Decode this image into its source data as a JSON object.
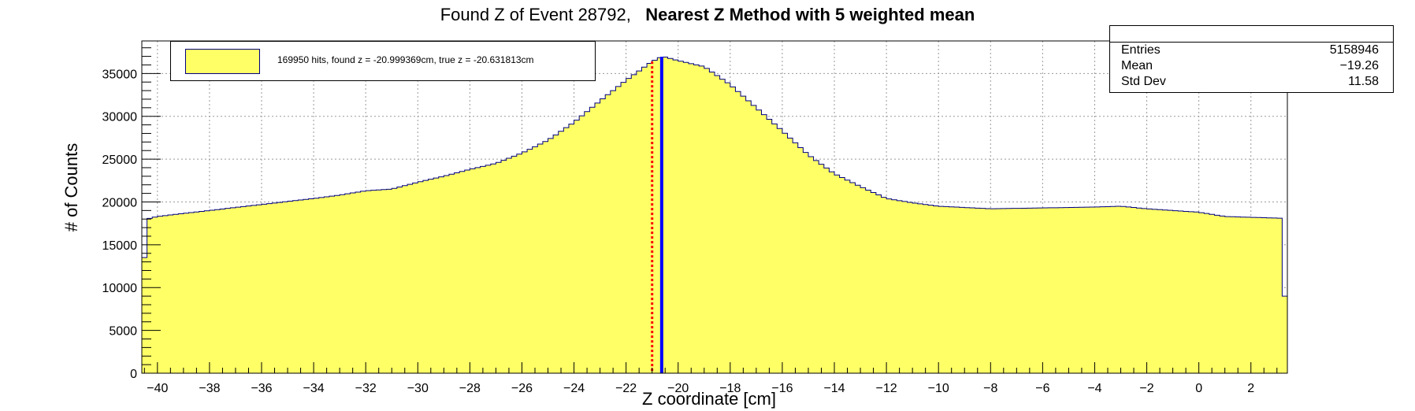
{
  "title": {
    "normal": "Found Z of Event 28792,",
    "bold": "Nearest Z Method with 5 weighted mean"
  },
  "legend": {
    "entry": "169950 hits, found z = -20.999369cm, true z = -20.631813cm"
  },
  "stats": {
    "rows": [
      {
        "label": "Entries",
        "value": "5158946"
      },
      {
        "label": "Mean",
        "value": "−19.26"
      },
      {
        "label": "Std Dev",
        "value": "11.58"
      }
    ]
  },
  "colors": {
    "fill": "#ffff66",
    "outline": "#000080",
    "true_z_line": "#0000ff",
    "found_z_line": "#ff0000",
    "grid": "#999999"
  },
  "chart_data": {
    "type": "bar",
    "histogram": true,
    "xlabel": "Z coordinate [cm]",
    "ylabel": "# of Counts",
    "xlim": [
      -40.6,
      3.4
    ],
    "ylim": [
      0,
      38800
    ],
    "grid": true,
    "xticks": [
      -40,
      -38,
      -36,
      -34,
      -32,
      -30,
      -28,
      -26,
      -24,
      -22,
      -20,
      -18,
      -16,
      -14,
      -12,
      -10,
      -8,
      -6,
      -4,
      -2,
      0,
      2
    ],
    "yticks": [
      0,
      5000,
      10000,
      15000,
      20000,
      25000,
      30000,
      35000
    ],
    "profile": [
      [
        -40.6,
        9000
      ],
      [
        -40.4,
        18000
      ],
      [
        -40,
        18300
      ],
      [
        -38,
        19000
      ],
      [
        -36,
        19700
      ],
      [
        -34,
        20400
      ],
      [
        -33,
        20800
      ],
      [
        -32,
        21300
      ],
      [
        -31,
        21500
      ],
      [
        -30,
        22300
      ],
      [
        -29,
        23000
      ],
      [
        -28,
        23800
      ],
      [
        -27,
        24500
      ],
      [
        -26,
        25700
      ],
      [
        -25,
        27200
      ],
      [
        -24,
        29300
      ],
      [
        -23,
        31800
      ],
      [
        -22,
        34200
      ],
      [
        -21,
        36400
      ],
      [
        -20.6,
        37000
      ],
      [
        -20,
        36500
      ],
      [
        -19,
        35800
      ],
      [
        -18,
        33700
      ],
      [
        -17,
        31000
      ],
      [
        -16,
        28300
      ],
      [
        -15,
        25500
      ],
      [
        -14,
        23300
      ],
      [
        -13,
        21800
      ],
      [
        -12,
        20400
      ],
      [
        -11,
        19900
      ],
      [
        -10,
        19500
      ],
      [
        -8,
        19200
      ],
      [
        -6,
        19300
      ],
      [
        -4,
        19400
      ],
      [
        -3,
        19500
      ],
      [
        -2,
        19200
      ],
      [
        0,
        18800
      ],
      [
        1,
        18300
      ],
      [
        3.1,
        18100
      ],
      [
        3.2,
        9000
      ],
      [
        3.4,
        9000
      ]
    ],
    "markers": {
      "found_z": -20.999369,
      "true_z": -20.631813
    }
  }
}
